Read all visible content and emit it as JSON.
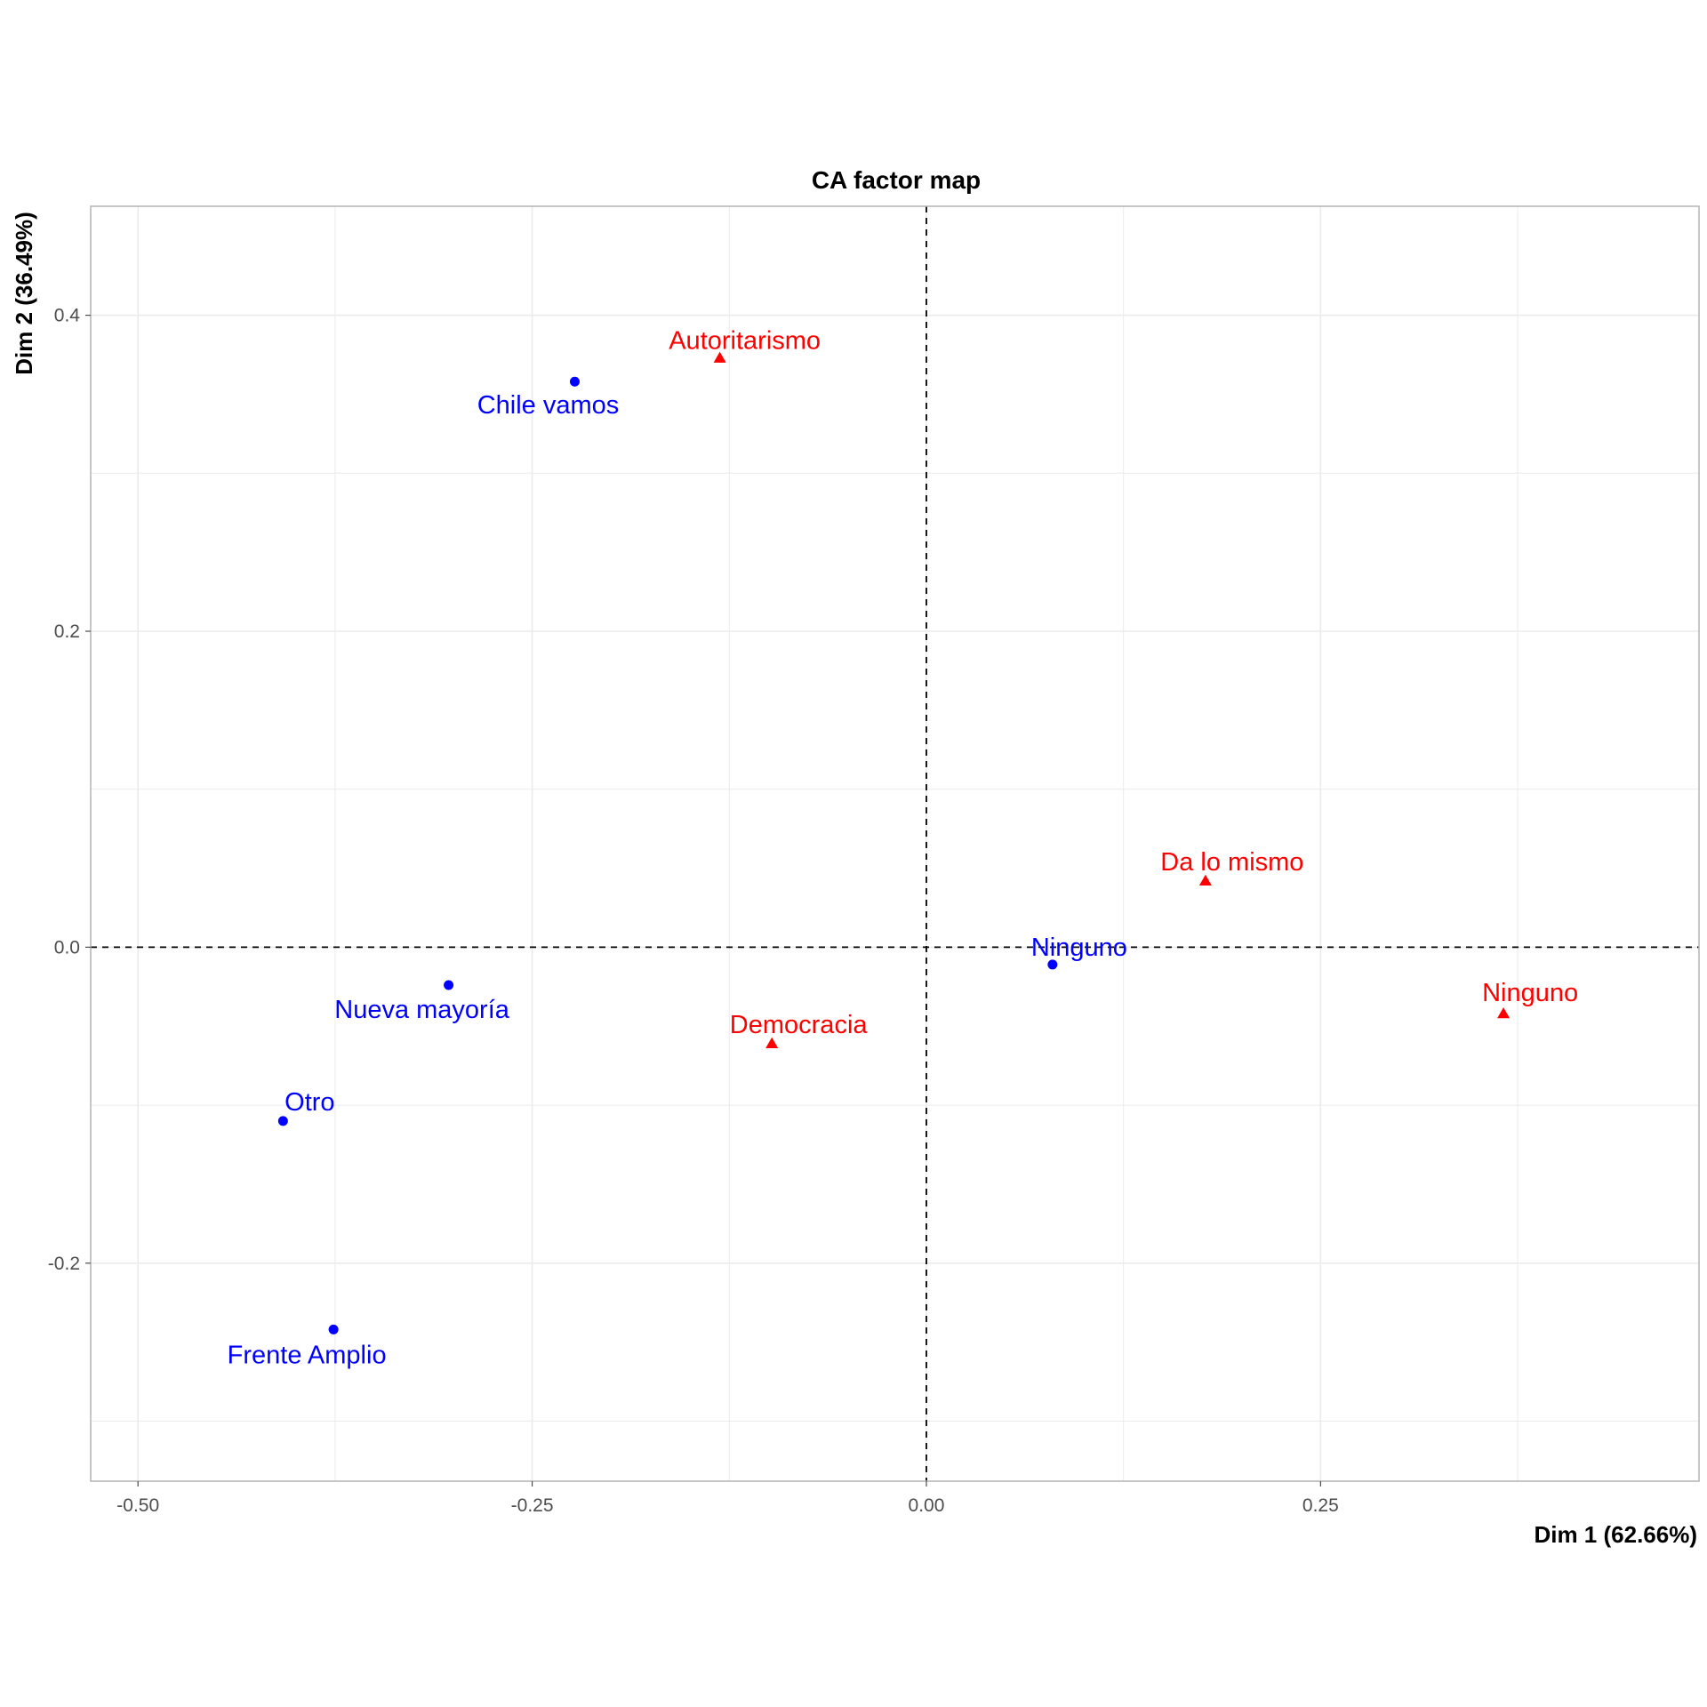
{
  "chart_data": {
    "type": "scatter",
    "title": "CA factor map",
    "xlabel": "Dim 1 (62.66%)",
    "ylabel": "Dim 2 (36.49%)",
    "xlim": [
      -0.53,
      0.49
    ],
    "ylim": [
      -0.338,
      0.469
    ],
    "x_ticks": [
      -0.5,
      -0.25,
      0.0,
      0.25
    ],
    "x_tick_labels": [
      "-0.50",
      "-0.25",
      "0.00",
      "0.25"
    ],
    "y_ticks": [
      -0.2,
      0.0,
      0.2,
      0.4
    ],
    "y_tick_labels": [
      "-0.2",
      "0.0",
      "0.2",
      "0.4"
    ],
    "grid": true,
    "reference_lines": {
      "x": 0,
      "y": 0,
      "style": "dashed"
    },
    "colors": {
      "rows": "#0000ff",
      "columns": "#ff0000",
      "grid": "#ebebeb",
      "panel_border": "#b3b3b3"
    },
    "series": [
      {
        "marker": "circle",
        "color": "#0000ff",
        "points": [
          {
            "label": "Chile vamos",
            "x": -0.223,
            "y": 0.358
          },
          {
            "label": "Nueva mayoría",
            "x": -0.303,
            "y": -0.024
          },
          {
            "label": "Otro",
            "x": -0.408,
            "y": -0.11
          },
          {
            "label": "Frente Amplio",
            "x": -0.376,
            "y": -0.242
          },
          {
            "label": "Ninguno",
            "x": 0.08,
            "y": -0.011
          }
        ]
      },
      {
        "marker": "triangle",
        "color": "#ff0000",
        "points": [
          {
            "label": "Autoritarismo",
            "x": -0.131,
            "y": 0.373
          },
          {
            "label": "Democracia",
            "x": -0.098,
            "y": -0.061
          },
          {
            "label": "Da lo mismo",
            "x": 0.177,
            "y": 0.042
          },
          {
            "label": "Ninguno",
            "x": 0.366,
            "y": -0.042
          }
        ]
      }
    ]
  }
}
